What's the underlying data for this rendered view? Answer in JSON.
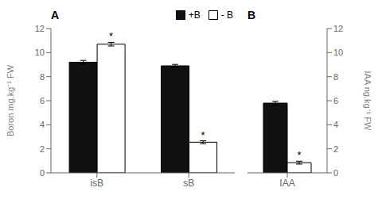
{
  "chart_data": [
    {
      "type": "bar",
      "categories": [
        "isB",
        "sB"
      ],
      "ylabel": "Boron mg.kg⁻¹ FW",
      "series": [
        {
          "name": "+B",
          "color": "#111111",
          "values": [
            9.2,
            8.9
          ],
          "errors": [
            0.15,
            0.12
          ]
        },
        {
          "name": "- B",
          "color": "#ffffff",
          "values": [
            10.7,
            2.55
          ],
          "errors": [
            0.15,
            0.12
          ]
        }
      ],
      "ylim": [
        0,
        12
      ],
      "yticks": [
        0,
        2,
        4,
        6,
        8,
        10,
        12
      ],
      "grid": false,
      "legend": "upper right",
      "annotations": [
        {
          "text": "A"
        },
        {
          "text": "*",
          "category": "isB",
          "series": "- B"
        },
        {
          "text": "*",
          "category": "sB",
          "series": "- B"
        }
      ]
    },
    {
      "type": "bar",
      "categories": [
        "IAA"
      ],
      "ylabel": "IAA  ng.kg⁻¹ FW",
      "series": [
        {
          "name": "+B",
          "color": "#111111",
          "values": [
            5.8
          ],
          "errors": [
            0.15
          ]
        },
        {
          "name": "- B",
          "color": "#ffffff",
          "values": [
            0.85
          ],
          "errors": [
            0.12
          ]
        }
      ],
      "ylim": [
        0,
        12
      ],
      "yticks": [
        0,
        2,
        4,
        6,
        8,
        10,
        12
      ],
      "grid": false,
      "annotations": [
        {
          "text": "B"
        },
        {
          "text": "*",
          "category": "IAA",
          "series": "- B"
        }
      ]
    }
  ]
}
